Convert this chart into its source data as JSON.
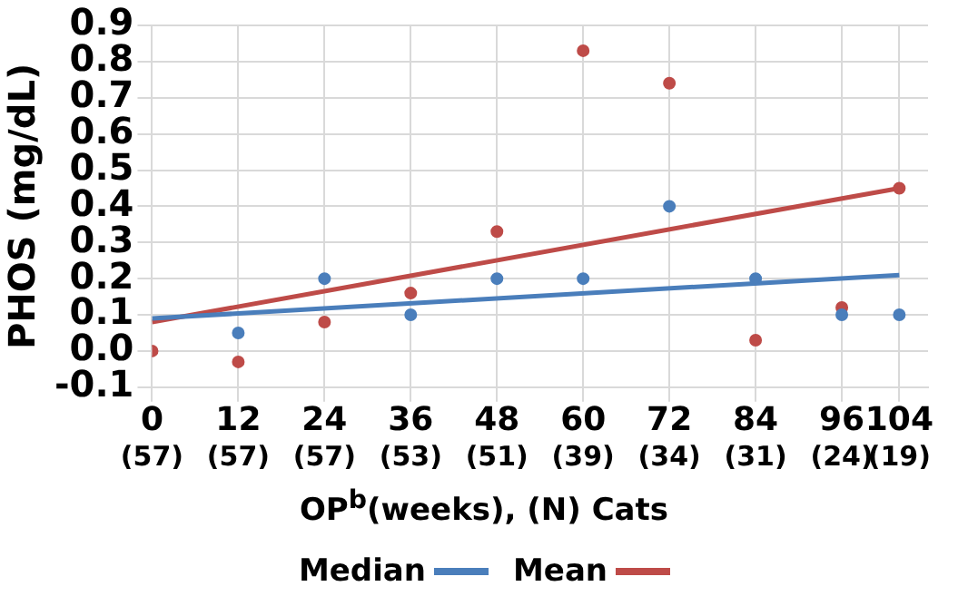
{
  "chart_data": {
    "type": "scatter",
    "xlabel": "OP$^{b}$(weeks), (N) Cats",
    "ylabel": "PHOS (mg/dL)",
    "x": [
      0,
      12,
      24,
      36,
      48,
      60,
      72,
      84,
      96,
      104
    ],
    "series": [
      {
        "name": "Median",
        "color": "#4a7ebb",
        "marker": "circle",
        "values": [
          null,
          0.05,
          0.2,
          0.1,
          0.2,
          0.2,
          0.4,
          0.2,
          0.1,
          0.1
        ]
      },
      {
        "name": "Mean",
        "color": "#be4b48",
        "marker": "circle",
        "values": [
          0.0,
          -0.03,
          0.08,
          0.16,
          0.33,
          0.83,
          0.74,
          0.03,
          0.12,
          0.45
        ]
      },
      {
        "type": "line",
        "color": "#4a7ebb",
        "values": [
          0.09,
          null,
          null,
          null,
          null,
          null,
          null,
          null,
          null,
          0.21
        ]
      },
      {
        "type": "line",
        "color": "#be4b48",
        "values": [
          0.08,
          null,
          null,
          null,
          null,
          null,
          null,
          null,
          null,
          0.45
        ]
      }
    ],
    "xlim": [
      0,
      108
    ],
    "xticks": [
      0,
      12,
      24,
      36,
      48,
      60,
      72,
      84,
      96,
      104
    ],
    "annotations": [
      "(57)",
      "(57)",
      "(57)",
      "(53)",
      "(51)",
      "(39)",
      "(34)",
      "(31)",
      "(24)",
      "(19)"
    ],
    "ylim": [
      -0.1,
      0.9
    ],
    "yticks": [
      {
        "value": -0.1,
        "label": "-0.1"
      },
      {
        "value": 0,
        "label": "0.0"
      },
      {
        "value": 0.1,
        "label": "0.1"
      },
      {
        "value": 0.2,
        "label": "0.2"
      },
      {
        "value": 0.3,
        "label": "0.3"
      },
      {
        "value": 0.4,
        "label": "0.4"
      },
      {
        "value": 0.5,
        "label": "0.5"
      },
      {
        "value": 0.6,
        "label": "0.6"
      },
      {
        "value": 0.7,
        "label": "0.7"
      },
      {
        "value": 0.8,
        "label": "0.8"
      },
      {
        "value": 0.9,
        "label": "0.9"
      }
    ],
    "grid": true,
    "legend": "bottom"
  }
}
